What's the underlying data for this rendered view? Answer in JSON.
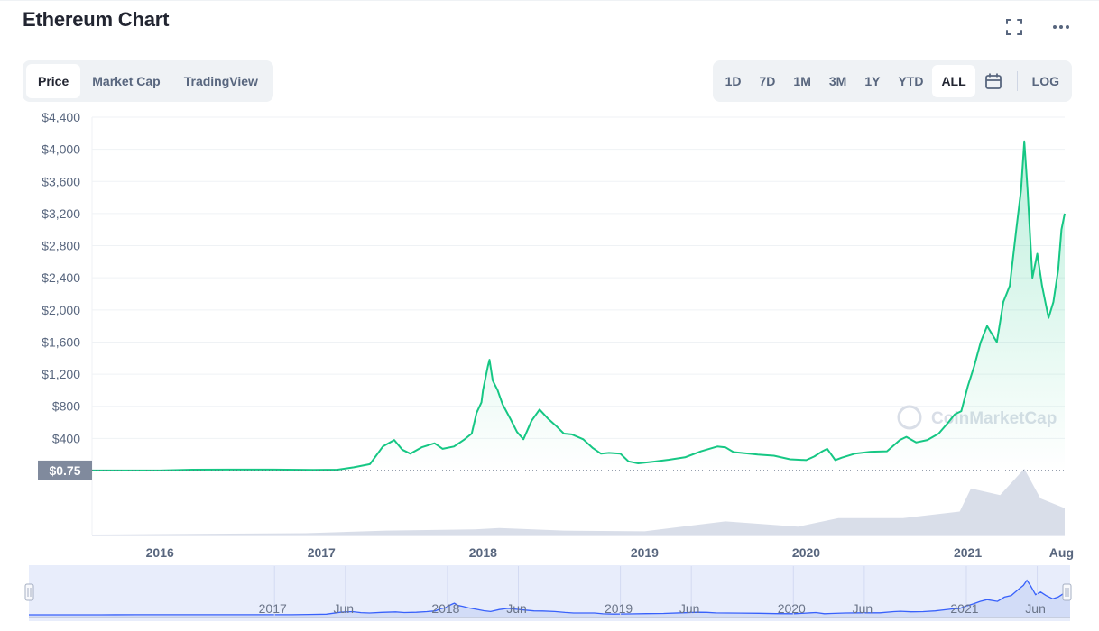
{
  "header": {
    "title": "Ethereum Chart"
  },
  "tabs": [
    {
      "label": "Price",
      "active": true
    },
    {
      "label": "Market Cap",
      "active": false
    },
    {
      "label": "TradingView",
      "active": false
    }
  ],
  "ranges": [
    {
      "label": "1D",
      "active": false
    },
    {
      "label": "7D",
      "active": false
    },
    {
      "label": "1M",
      "active": false
    },
    {
      "label": "3M",
      "active": false
    },
    {
      "label": "1Y",
      "active": false
    },
    {
      "label": "YTD",
      "active": false
    },
    {
      "label": "ALL",
      "active": true
    }
  ],
  "log_label": "LOG",
  "icons": {
    "fullscreen": "fullscreen-icon",
    "more": "more-horizontal-icon",
    "calendar": "calendar-icon"
  },
  "watermark": "CoinMarketCap",
  "colors": {
    "price_line": "#16c784",
    "volume": "#cfd6e4",
    "navigator_line": "#3861fb",
    "axis_text": "#58667e",
    "label_bg": "#808a9d"
  },
  "chart_data": {
    "type": "area",
    "ylabel": "",
    "xlabel": "",
    "ylim": [
      0,
      4400
    ],
    "x_range": [
      2015.58,
      2021.6
    ],
    "y_ticks": [
      "$4,400",
      "$4,000",
      "$3,600",
      "$3,200",
      "$2,800",
      "$2,400",
      "$2,000",
      "$1,600",
      "$1,200",
      "$800",
      "$400"
    ],
    "y_tick_values": [
      4400,
      4000,
      3600,
      3200,
      2800,
      2400,
      2000,
      1600,
      1200,
      800,
      400
    ],
    "x_ticks": [
      "2016",
      "2017",
      "2018",
      "2019",
      "2020",
      "2021",
      "Aug"
    ],
    "x_tick_values": [
      2016.0,
      2017.0,
      2018.0,
      2019.0,
      2020.0,
      2021.0,
      2021.58
    ],
    "start_price_label": "$0.75",
    "start_price": 0.75,
    "series": [
      {
        "points": [
          [
            2015.58,
            1
          ],
          [
            2016.0,
            1
          ],
          [
            2016.2,
            11
          ],
          [
            2016.45,
            12
          ],
          [
            2016.7,
            12
          ],
          [
            2016.95,
            8
          ],
          [
            2017.1,
            11
          ],
          [
            2017.2,
            40
          ],
          [
            2017.3,
            80
          ],
          [
            2017.38,
            300
          ],
          [
            2017.45,
            380
          ],
          [
            2017.5,
            260
          ],
          [
            2017.55,
            210
          ],
          [
            2017.62,
            290
          ],
          [
            2017.7,
            340
          ],
          [
            2017.75,
            270
          ],
          [
            2017.82,
            300
          ],
          [
            2017.88,
            380
          ],
          [
            2017.93,
            460
          ],
          [
            2017.96,
            720
          ],
          [
            2017.99,
            850
          ],
          [
            2018.0,
            1000
          ],
          [
            2018.03,
            1300
          ],
          [
            2018.04,
            1380
          ],
          [
            2018.06,
            1120
          ],
          [
            2018.09,
            1000
          ],
          [
            2018.12,
            830
          ],
          [
            2018.17,
            640
          ],
          [
            2018.21,
            480
          ],
          [
            2018.25,
            390
          ],
          [
            2018.3,
            620
          ],
          [
            2018.35,
            760
          ],
          [
            2018.4,
            650
          ],
          [
            2018.45,
            560
          ],
          [
            2018.5,
            460
          ],
          [
            2018.55,
            450
          ],
          [
            2018.62,
            390
          ],
          [
            2018.68,
            280
          ],
          [
            2018.73,
            210
          ],
          [
            2018.78,
            220
          ],
          [
            2018.85,
            210
          ],
          [
            2018.9,
            115
          ],
          [
            2018.96,
            90
          ],
          [
            2019.05,
            110
          ],
          [
            2019.15,
            135
          ],
          [
            2019.25,
            165
          ],
          [
            2019.35,
            240
          ],
          [
            2019.45,
            300
          ],
          [
            2019.5,
            290
          ],
          [
            2019.55,
            230
          ],
          [
            2019.62,
            215
          ],
          [
            2019.7,
            200
          ],
          [
            2019.8,
            185
          ],
          [
            2019.9,
            140
          ],
          [
            2020.0,
            130
          ],
          [
            2020.05,
            175
          ],
          [
            2020.1,
            240
          ],
          [
            2020.13,
            270
          ],
          [
            2020.18,
            130
          ],
          [
            2020.22,
            160
          ],
          [
            2020.3,
            210
          ],
          [
            2020.4,
            235
          ],
          [
            2020.5,
            240
          ],
          [
            2020.58,
            380
          ],
          [
            2020.62,
            420
          ],
          [
            2020.68,
            350
          ],
          [
            2020.75,
            380
          ],
          [
            2020.82,
            460
          ],
          [
            2020.88,
            600
          ],
          [
            2020.92,
            700
          ],
          [
            2020.96,
            740
          ],
          [
            2021.0,
            1050
          ],
          [
            2021.04,
            1300
          ],
          [
            2021.08,
            1600
          ],
          [
            2021.12,
            1800
          ],
          [
            2021.18,
            1600
          ],
          [
            2021.22,
            2100
          ],
          [
            2021.26,
            2300
          ],
          [
            2021.3,
            3000
          ],
          [
            2021.33,
            3500
          ],
          [
            2021.35,
            4100
          ],
          [
            2021.37,
            3500
          ],
          [
            2021.4,
            2400
          ],
          [
            2021.43,
            2700
          ],
          [
            2021.46,
            2300
          ],
          [
            2021.5,
            1900
          ],
          [
            2021.53,
            2100
          ],
          [
            2021.56,
            2500
          ],
          [
            2021.58,
            3000
          ],
          [
            2021.6,
            3200
          ]
        ]
      }
    ],
    "volume_series": [
      {
        "points": [
          [
            2015.58,
            0
          ],
          [
            2016.9,
            0.02
          ],
          [
            2017.4,
            0.06
          ],
          [
            2017.95,
            0.08
          ],
          [
            2018.1,
            0.1
          ],
          [
            2018.5,
            0.06
          ],
          [
            2019.0,
            0.05
          ],
          [
            2019.5,
            0.2
          ],
          [
            2019.95,
            0.12
          ],
          [
            2020.2,
            0.25
          ],
          [
            2020.6,
            0.25
          ],
          [
            2020.95,
            0.35
          ],
          [
            2021.02,
            0.7
          ],
          [
            2021.2,
            0.6
          ],
          [
            2021.35,
            1.0
          ],
          [
            2021.45,
            0.55
          ],
          [
            2021.6,
            0.4
          ]
        ]
      }
    ]
  },
  "navigator": {
    "x_labels": [
      "2017",
      "Jun",
      "2018",
      "Jun",
      "2019",
      "Jun",
      "2020",
      "Jun",
      "2021",
      "Jun"
    ],
    "x_values": [
      2017.0,
      2017.41,
      2018.0,
      2018.41,
      2019.0,
      2019.41,
      2020.0,
      2020.41,
      2021.0,
      2021.41
    ]
  }
}
